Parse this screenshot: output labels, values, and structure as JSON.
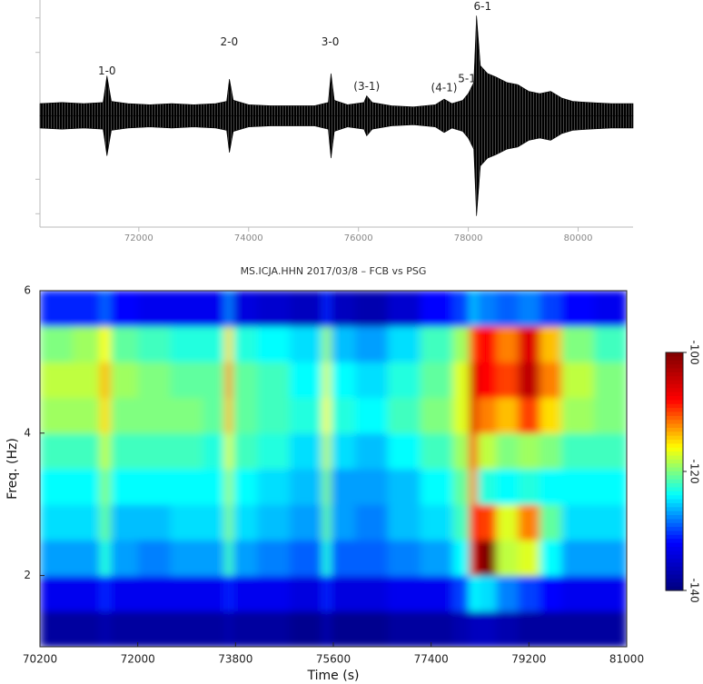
{
  "chart_data": [
    {
      "type": "area",
      "x": [
        70200,
        70600,
        71000,
        71350,
        71420,
        71500,
        71800,
        72200,
        72600,
        73000,
        73400,
        73600,
        73650,
        73720,
        74000,
        74400,
        74800,
        75200,
        75450,
        75500,
        75560,
        75800,
        76100,
        76150,
        76250,
        76600,
        77000,
        77400,
        77560,
        77700,
        77900,
        78000,
        78100,
        78150,
        78220,
        78350,
        78500,
        78700,
        78900,
        79100,
        79300,
        79500,
        79700,
        79900,
        80200,
        80600,
        81000
      ],
      "values": [
        0.11,
        0.12,
        0.11,
        0.12,
        0.36,
        0.13,
        0.11,
        0.1,
        0.11,
        0.1,
        0.11,
        0.13,
        0.33,
        0.14,
        0.1,
        0.09,
        0.09,
        0.09,
        0.12,
        0.38,
        0.14,
        0.1,
        0.12,
        0.18,
        0.12,
        0.09,
        0.08,
        0.1,
        0.15,
        0.11,
        0.14,
        0.2,
        0.3,
        0.9,
        0.45,
        0.38,
        0.35,
        0.3,
        0.28,
        0.22,
        0.2,
        0.22,
        0.16,
        0.13,
        0.12,
        0.11,
        0.11
      ],
      "color": "#000000",
      "xlim": [
        70200,
        81000
      ],
      "ylim": [
        -1,
        1
      ],
      "xticks": [
        72000,
        74000,
        76000,
        78000,
        80000
      ],
      "yticks": [
        -0.88,
        -0.57,
        0.57,
        0.88
      ],
      "annotations": [
        {
          "text": "1-0",
          "x": 71420,
          "y": 0.4
        },
        {
          "text": "2-0",
          "x": 73645,
          "y": 0.66
        },
        {
          "text": "3-0",
          "x": 75485,
          "y": 0.66
        },
        {
          "text": "(3-1)",
          "x": 76150,
          "y": 0.26
        },
        {
          "text": "(4-1)",
          "x": 77560,
          "y": 0.25
        },
        {
          "text": "5-1",
          "x": 77975,
          "y": 0.33
        },
        {
          "text": "6-1",
          "x": 78260,
          "y": 0.98
        }
      ]
    },
    {
      "type": "heatmap",
      "title": "MS.ICJA.HHN 2017/03/8 – FCB vs PSG",
      "x_label": "Time (s)",
      "y_label": "Freq. (Hz)",
      "xlim": [
        70200,
        81000
      ],
      "ylim": [
        1,
        6
      ],
      "xticks": [
        70200,
        72000,
        73800,
        75600,
        77400,
        79200,
        81000
      ],
      "yticks": [
        2,
        4,
        6
      ],
      "xbins": [
        70200,
        70800,
        71300,
        71500,
        72000,
        72600,
        73200,
        73600,
        73750,
        74200,
        74800,
        75400,
        75550,
        76000,
        76600,
        77200,
        77800,
        78100,
        78250,
        78600,
        79000,
        79400,
        79800,
        80400,
        81000
      ],
      "ybins": [
        1,
        1.5,
        2,
        2.5,
        3,
        3.5,
        4,
        4.5,
        5,
        5.5,
        6
      ],
      "z": [
        [
          -138,
          -138,
          -137,
          -138,
          -138,
          -138,
          -138,
          -137,
          -138,
          -138,
          -139,
          -137,
          -139,
          -139,
          -138,
          -138,
          -137,
          -136,
          -136,
          -137,
          -138,
          -138,
          -138,
          -138
        ],
        [
          -133,
          -133,
          -131,
          -133,
          -133,
          -133,
          -133,
          -131,
          -133,
          -133,
          -134,
          -131,
          -134,
          -134,
          -133,
          -133,
          -130,
          -124,
          -125,
          -128,
          -130,
          -132,
          -133,
          -133
        ],
        [
          -127,
          -127,
          -123,
          -127,
          -128,
          -127,
          -127,
          -122,
          -127,
          -128,
          -129,
          -123,
          -129,
          -129,
          -128,
          -127,
          -124,
          -106,
          -100,
          -118,
          -117,
          -124,
          -127,
          -127
        ],
        [
          -125,
          -125,
          -121,
          -126,
          -126,
          -125,
          -125,
          -120,
          -125,
          -126,
          -127,
          -121,
          -127,
          -128,
          -126,
          -125,
          -122,
          -108,
          -110,
          -117,
          -112,
          -121,
          -125,
          -125
        ],
        [
          -124,
          -124,
          -120,
          -124,
          -124,
          -124,
          -124,
          -119,
          -124,
          -125,
          -126,
          -120,
          -127,
          -127,
          -126,
          -124,
          -121,
          -112,
          -123,
          -124,
          -123,
          -124,
          -124,
          -124
        ],
        [
          -122,
          -122,
          -118,
          -122,
          -122,
          -122,
          -123,
          -117,
          -122,
          -123,
          -125,
          -118,
          -125,
          -126,
          -124,
          -122,
          -119,
          -110,
          -118,
          -120,
          -119,
          -120,
          -122,
          -122
        ],
        [
          -119,
          -119,
          -115,
          -120,
          -120,
          -120,
          -121,
          -114,
          -121,
          -122,
          -123,
          -116,
          -123,
          -124,
          -122,
          -120,
          -117,
          -106,
          -112,
          -114,
          -110,
          -115,
          -119,
          -120
        ],
        [
          -118,
          -118,
          -114,
          -119,
          -120,
          -121,
          -121,
          -113,
          -121,
          -122,
          -124,
          -117,
          -124,
          -125,
          -123,
          -121,
          -117,
          -105,
          -108,
          -110,
          -104,
          -112,
          -118,
          -120
        ],
        [
          -120,
          -119,
          -116,
          -121,
          -122,
          -123,
          -123,
          -115,
          -123,
          -124,
          -125,
          -119,
          -126,
          -127,
          -125,
          -122,
          -119,
          -110,
          -108,
          -112,
          -106,
          -114,
          -120,
          -122
        ],
        [
          -131,
          -131,
          -129,
          -132,
          -133,
          -133,
          -133,
          -128,
          -134,
          -135,
          -136,
          -131,
          -136,
          -137,
          -135,
          -132,
          -130,
          -126,
          -128,
          -129,
          -128,
          -130,
          -132,
          -133
        ]
      ],
      "clim": [
        -140,
        -100
      ],
      "cticks": [
        -100,
        -120,
        -140
      ],
      "colormap": [
        "#00007f",
        "#0000ff",
        "#00ffff",
        "#ffff00",
        "#ff0000",
        "#7f0000"
      ]
    }
  ]
}
